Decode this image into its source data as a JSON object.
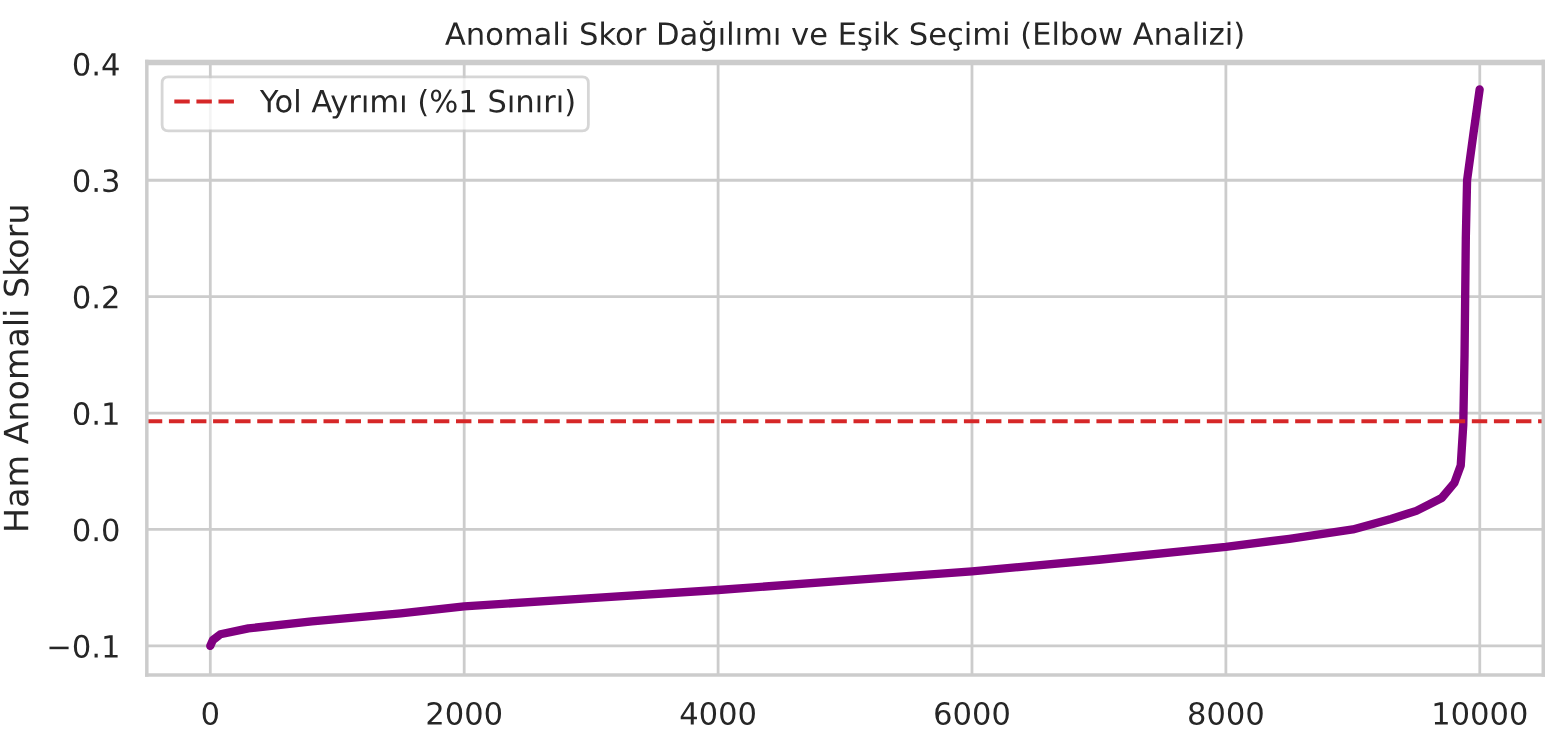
{
  "chart_data": {
    "type": "line",
    "title": "Anomali Skor Dağılımı ve Eşik Seçimi (Elbow Analizi)",
    "ylabel": "Ham Anomali Skoru",
    "series": [
      {
        "color": "#800080",
        "x": [
          0,
          20,
          80,
          300,
          800,
          1500,
          2000,
          3000,
          4000,
          5000,
          6000,
          7000,
          8000,
          8500,
          9000,
          9300,
          9500,
          9700,
          9800,
          9850,
          9870,
          9880,
          9890,
          9900,
          9950,
          9999
        ],
        "values": [
          -0.1,
          -0.095,
          -0.09,
          -0.085,
          -0.079,
          -0.072,
          -0.066,
          -0.059,
          -0.052,
          -0.044,
          -0.036,
          -0.026,
          -0.015,
          -0.008,
          0.0,
          0.009,
          0.016,
          0.027,
          0.04,
          0.055,
          0.09,
          0.15,
          0.25,
          0.3,
          0.34,
          0.378
        ]
      }
    ],
    "ref_lines": [
      {
        "axis": "y",
        "value": 0.093,
        "label": "Yol Ayrımı (%1 Sınırı)",
        "color": "#d62728",
        "line_style": "dashed"
      }
    ],
    "xlim": [
      -500,
      10500
    ],
    "xticks": [
      0,
      2000,
      4000,
      6000,
      8000,
      10000
    ],
    "ylim": [
      -0.125,
      0.402
    ],
    "yticks": [
      {
        "value": -0.1,
        "label": "−0.1"
      },
      {
        "value": 0,
        "label": "0.0"
      },
      0.1,
      0.2,
      0.3,
      0.4
    ],
    "grid": true,
    "legend": "top left",
    "marker": "none",
    "line_style": "solid"
  }
}
